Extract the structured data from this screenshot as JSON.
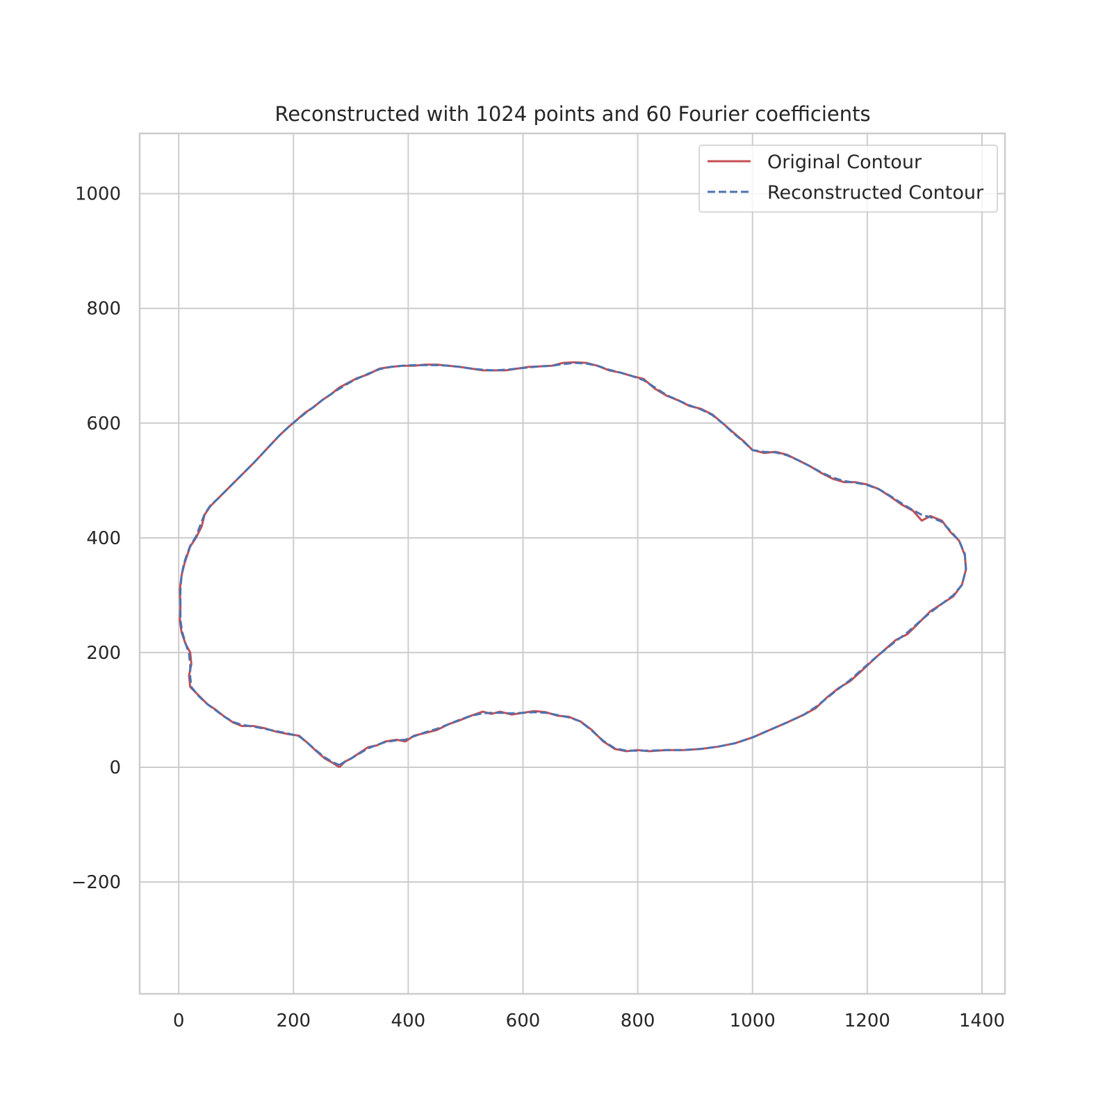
{
  "chart_data": {
    "type": "line",
    "title": "Reconstructed with 1024 points and 60 Fourier coefficients",
    "xlabel": "",
    "ylabel": "",
    "xlim": [
      -68,
      1440
    ],
    "ylim": [
      -395,
      1105
    ],
    "xticks": [
      0,
      200,
      400,
      600,
      800,
      1000,
      1200,
      1400
    ],
    "yticks": [
      -200,
      0,
      200,
      400,
      600,
      800,
      1000
    ],
    "xtick_labels": [
      "0",
      "200",
      "400",
      "600",
      "800",
      "1000",
      "1200",
      "1400"
    ],
    "ytick_labels": [
      "−200",
      "0",
      "200",
      "400",
      "600",
      "800",
      "1000"
    ],
    "grid": true,
    "legend_position": "top-right",
    "series": [
      {
        "name": "Original Contour",
        "color": "#c44e52",
        "style": "solid",
        "points": [
          [
            280,
            0
          ],
          [
            290,
            10
          ],
          [
            300,
            15
          ],
          [
            315,
            25
          ],
          [
            330,
            35
          ],
          [
            345,
            38
          ],
          [
            360,
            45
          ],
          [
            380,
            48
          ],
          [
            395,
            45
          ],
          [
            410,
            55
          ],
          [
            430,
            60
          ],
          [
            450,
            65
          ],
          [
            470,
            75
          ],
          [
            490,
            82
          ],
          [
            510,
            90
          ],
          [
            530,
            97
          ],
          [
            545,
            93
          ],
          [
            560,
            97
          ],
          [
            580,
            92
          ],
          [
            600,
            95
          ],
          [
            620,
            98
          ],
          [
            640,
            96
          ],
          [
            660,
            90
          ],
          [
            680,
            88
          ],
          [
            700,
            80
          ],
          [
            720,
            65
          ],
          [
            740,
            45
          ],
          [
            760,
            32
          ],
          [
            780,
            28
          ],
          [
            800,
            30
          ],
          [
            820,
            28
          ],
          [
            850,
            30
          ],
          [
            880,
            30
          ],
          [
            910,
            32
          ],
          [
            940,
            36
          ],
          [
            970,
            42
          ],
          [
            1000,
            52
          ],
          [
            1030,
            65
          ],
          [
            1060,
            78
          ],
          [
            1090,
            92
          ],
          [
            1110,
            103
          ],
          [
            1130,
            122
          ],
          [
            1150,
            138
          ],
          [
            1170,
            150
          ],
          [
            1190,
            168
          ],
          [
            1220,
            196
          ],
          [
            1250,
            222
          ],
          [
            1270,
            232
          ],
          [
            1290,
            252
          ],
          [
            1310,
            272
          ],
          [
            1330,
            285
          ],
          [
            1350,
            298
          ],
          [
            1365,
            318
          ],
          [
            1372,
            345
          ],
          [
            1370,
            370
          ],
          [
            1360,
            395
          ],
          [
            1345,
            410
          ],
          [
            1330,
            430
          ],
          [
            1310,
            438
          ],
          [
            1295,
            430
          ],
          [
            1280,
            447
          ],
          [
            1260,
            458
          ],
          [
            1240,
            472
          ],
          [
            1220,
            485
          ],
          [
            1200,
            493
          ],
          [
            1180,
            497
          ],
          [
            1160,
            497
          ],
          [
            1140,
            503
          ],
          [
            1120,
            513
          ],
          [
            1100,
            525
          ],
          [
            1080,
            535
          ],
          [
            1060,
            545
          ],
          [
            1040,
            550
          ],
          [
            1020,
            548
          ],
          [
            1000,
            553
          ],
          [
            985,
            568
          ],
          [
            965,
            585
          ],
          [
            950,
            598
          ],
          [
            930,
            615
          ],
          [
            910,
            625
          ],
          [
            890,
            630
          ],
          [
            870,
            640
          ],
          [
            850,
            648
          ],
          [
            830,
            660
          ],
          [
            810,
            677
          ],
          [
            790,
            682
          ],
          [
            770,
            688
          ],
          [
            750,
            692
          ],
          [
            730,
            700
          ],
          [
            710,
            705
          ],
          [
            690,
            706
          ],
          [
            670,
            705
          ],
          [
            650,
            700
          ],
          [
            630,
            699
          ],
          [
            610,
            698
          ],
          [
            590,
            695
          ],
          [
            570,
            692
          ],
          [
            550,
            692
          ],
          [
            530,
            692
          ],
          [
            510,
            695
          ],
          [
            490,
            698
          ],
          [
            470,
            700
          ],
          [
            450,
            702
          ],
          [
            430,
            702
          ],
          [
            410,
            700
          ],
          [
            390,
            700
          ],
          [
            370,
            698
          ],
          [
            350,
            695
          ],
          [
            330,
            685
          ],
          [
            310,
            678
          ],
          [
            295,
            670
          ],
          [
            280,
            662
          ],
          [
            265,
            650
          ],
          [
            250,
            640
          ],
          [
            235,
            628
          ],
          [
            220,
            618
          ],
          [
            205,
            605
          ],
          [
            190,
            592
          ],
          [
            175,
            578
          ],
          [
            160,
            562
          ],
          [
            145,
            546
          ],
          [
            130,
            530
          ],
          [
            115,
            515
          ],
          [
            100,
            500
          ],
          [
            85,
            485
          ],
          [
            70,
            470
          ],
          [
            55,
            455
          ],
          [
            45,
            440
          ],
          [
            40,
            420
          ],
          [
            30,
            400
          ],
          [
            20,
            385
          ],
          [
            15,
            370
          ],
          [
            10,
            355
          ],
          [
            5,
            335
          ],
          [
            2,
            310
          ],
          [
            3,
            280
          ],
          [
            2,
            255
          ],
          [
            5,
            235
          ],
          [
            12,
            215
          ],
          [
            20,
            200
          ],
          [
            22,
            180
          ],
          [
            18,
            160
          ],
          [
            20,
            140
          ],
          [
            35,
            125
          ],
          [
            50,
            110
          ],
          [
            65,
            100
          ],
          [
            80,
            88
          ],
          [
            95,
            78
          ],
          [
            110,
            72
          ],
          [
            130,
            72
          ],
          [
            150,
            68
          ],
          [
            170,
            62
          ],
          [
            190,
            58
          ],
          [
            210,
            55
          ],
          [
            225,
            42
          ],
          [
            240,
            28
          ],
          [
            255,
            15
          ],
          [
            268,
            8
          ],
          [
            280,
            0
          ]
        ]
      },
      {
        "name": "Reconstructed Contour",
        "color": "#4c72b0",
        "style": "dashed",
        "points": [
          [
            280,
            4
          ],
          [
            290,
            10
          ],
          [
            300,
            15
          ],
          [
            315,
            24
          ],
          [
            330,
            33
          ],
          [
            345,
            39
          ],
          [
            360,
            44
          ],
          [
            380,
            47
          ],
          [
            395,
            48
          ],
          [
            410,
            54
          ],
          [
            430,
            61
          ],
          [
            450,
            67
          ],
          [
            470,
            75
          ],
          [
            490,
            83
          ],
          [
            510,
            90
          ],
          [
            530,
            94
          ],
          [
            545,
            95
          ],
          [
            560,
            95
          ],
          [
            580,
            94
          ],
          [
            600,
            95
          ],
          [
            620,
            96
          ],
          [
            640,
            95
          ],
          [
            660,
            91
          ],
          [
            680,
            87
          ],
          [
            700,
            80
          ],
          [
            720,
            64
          ],
          [
            740,
            46
          ],
          [
            760,
            33
          ],
          [
            780,
            29
          ],
          [
            800,
            29
          ],
          [
            820,
            29
          ],
          [
            850,
            30
          ],
          [
            880,
            30
          ],
          [
            910,
            32
          ],
          [
            940,
            36
          ],
          [
            970,
            42
          ],
          [
            1000,
            52
          ],
          [
            1030,
            65
          ],
          [
            1060,
            78
          ],
          [
            1090,
            92
          ],
          [
            1110,
            105
          ],
          [
            1130,
            121
          ],
          [
            1150,
            137
          ],
          [
            1170,
            152
          ],
          [
            1190,
            170
          ],
          [
            1220,
            196
          ],
          [
            1250,
            220
          ],
          [
            1270,
            235
          ],
          [
            1290,
            253
          ],
          [
            1310,
            270
          ],
          [
            1330,
            285
          ],
          [
            1350,
            300
          ],
          [
            1365,
            318
          ],
          [
            1372,
            345
          ],
          [
            1370,
            372
          ],
          [
            1360,
            395
          ],
          [
            1345,
            412
          ],
          [
            1330,
            428
          ],
          [
            1310,
            436
          ],
          [
            1295,
            440
          ],
          [
            1280,
            448
          ],
          [
            1260,
            460
          ],
          [
            1240,
            473
          ],
          [
            1220,
            485
          ],
          [
            1200,
            492
          ],
          [
            1180,
            496
          ],
          [
            1160,
            499
          ],
          [
            1140,
            505
          ],
          [
            1120,
            514
          ],
          [
            1100,
            525
          ],
          [
            1080,
            535
          ],
          [
            1060,
            544
          ],
          [
            1040,
            549
          ],
          [
            1020,
            550
          ],
          [
            1000,
            553
          ],
          [
            985,
            567
          ],
          [
            965,
            584
          ],
          [
            950,
            598
          ],
          [
            930,
            614
          ],
          [
            910,
            624
          ],
          [
            890,
            631
          ],
          [
            870,
            640
          ],
          [
            850,
            649
          ],
          [
            830,
            662
          ],
          [
            810,
            675
          ],
          [
            790,
            682
          ],
          [
            770,
            688
          ],
          [
            750,
            693
          ],
          [
            730,
            700
          ],
          [
            710,
            704
          ],
          [
            690,
            705
          ],
          [
            670,
            703
          ],
          [
            650,
            700
          ],
          [
            630,
            699
          ],
          [
            610,
            697
          ],
          [
            590,
            695
          ],
          [
            570,
            693
          ],
          [
            550,
            692
          ],
          [
            530,
            693
          ],
          [
            510,
            695
          ],
          [
            490,
            698
          ],
          [
            470,
            700
          ],
          [
            450,
            701
          ],
          [
            430,
            701
          ],
          [
            410,
            701
          ],
          [
            390,
            700
          ],
          [
            370,
            698
          ],
          [
            350,
            694
          ],
          [
            330,
            686
          ],
          [
            310,
            677
          ],
          [
            295,
            669
          ],
          [
            280,
            660
          ],
          [
            265,
            650
          ],
          [
            250,
            640
          ],
          [
            235,
            628
          ],
          [
            220,
            617
          ],
          [
            205,
            605
          ],
          [
            190,
            592
          ],
          [
            175,
            578
          ],
          [
            160,
            562
          ],
          [
            145,
            546
          ],
          [
            130,
            530
          ],
          [
            115,
            515
          ],
          [
            100,
            500
          ],
          [
            85,
            485
          ],
          [
            70,
            470
          ],
          [
            55,
            456
          ],
          [
            45,
            441
          ],
          [
            38,
            423
          ],
          [
            30,
            402
          ],
          [
            20,
            386
          ],
          [
            14,
            370
          ],
          [
            9,
            355
          ],
          [
            5,
            335
          ],
          [
            3,
            310
          ],
          [
            3,
            282
          ],
          [
            3,
            257
          ],
          [
            6,
            236
          ],
          [
            12,
            216
          ],
          [
            18,
            198
          ],
          [
            20,
            178
          ],
          [
            20,
            158
          ],
          [
            22,
            140
          ],
          [
            35,
            124
          ],
          [
            50,
            110
          ],
          [
            65,
            99
          ],
          [
            80,
            88
          ],
          [
            95,
            79
          ],
          [
            110,
            74
          ],
          [
            130,
            71
          ],
          [
            150,
            67
          ],
          [
            170,
            63
          ],
          [
            190,
            59
          ],
          [
            210,
            54
          ],
          [
            225,
            42
          ],
          [
            240,
            29
          ],
          [
            255,
            17
          ],
          [
            268,
            9
          ],
          [
            280,
            4
          ]
        ]
      }
    ]
  }
}
